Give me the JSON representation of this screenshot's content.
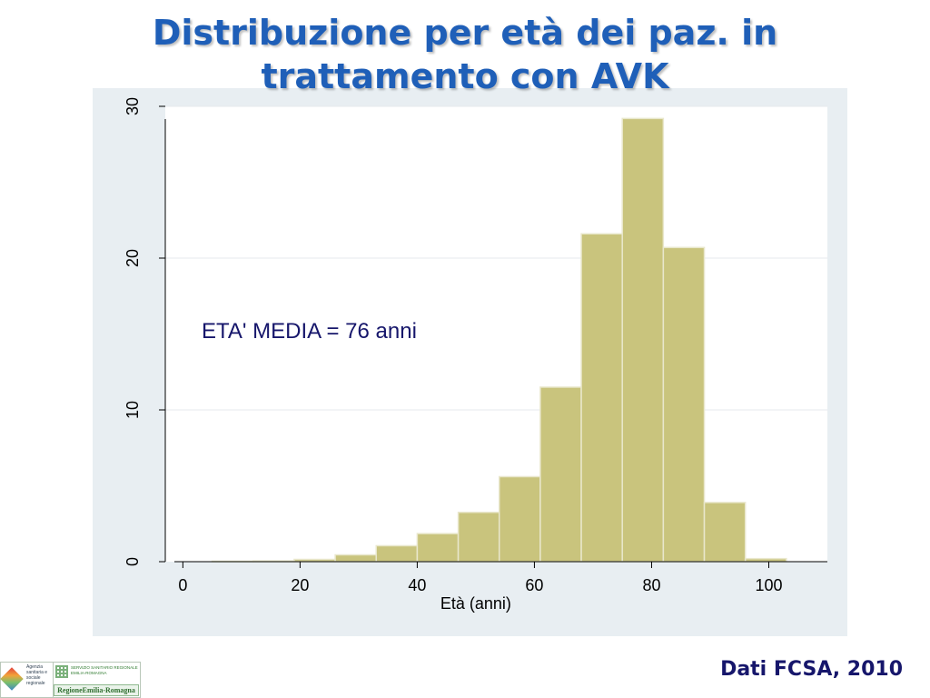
{
  "slide": {
    "title_line1": "Distribuzione  per età dei paz. in",
    "title_line2": "trattamento  con AVK",
    "annotation": "ETA' MEDIA =  76 anni",
    "source": "Dati FCSA,  2010",
    "logos": {
      "agency_text": "Agenzia sanitaria e sociale regionale",
      "ssr_text_line1": "SERVIZIO SANITARIO REGIONALE",
      "ssr_text_line2": "EMILIA-ROMAGNA",
      "region_text": "RegioneEmilia-Romagna"
    }
  },
  "colors": {
    "title": "#1f5fb8",
    "bar_fill": "#c9c47d",
    "bar_stroke": "#e9e7cc",
    "frame_background": "#e8eef2",
    "plot_background": "#ffffff",
    "text_dark": "#16166b"
  },
  "chart_data": {
    "type": "bar",
    "subtype": "histogram",
    "title": "",
    "xlabel": "Età (anni)",
    "ylabel": "",
    "xlim": [
      -3,
      110
    ],
    "ylim": [
      0,
      30
    ],
    "x_ticks": [
      0,
      20,
      40,
      60,
      80,
      100
    ],
    "x_tick_labels": [
      "0",
      "20",
      "40",
      "60",
      "80",
      "100"
    ],
    "y_ticks": [
      0,
      10,
      20,
      30
    ],
    "y_tick_labels": [
      "0",
      "10",
      "20",
      "30"
    ],
    "grid": true,
    "legend": "none",
    "bin_edges": [
      5,
      12,
      19,
      26,
      33,
      40,
      47,
      54,
      61,
      68,
      75,
      82,
      89,
      96,
      103
    ],
    "values": [
      0.03,
      0.05,
      0.15,
      0.45,
      1.05,
      1.85,
      3.25,
      5.6,
      11.5,
      21.6,
      29.2,
      20.7,
      3.9,
      0.2
    ]
  }
}
